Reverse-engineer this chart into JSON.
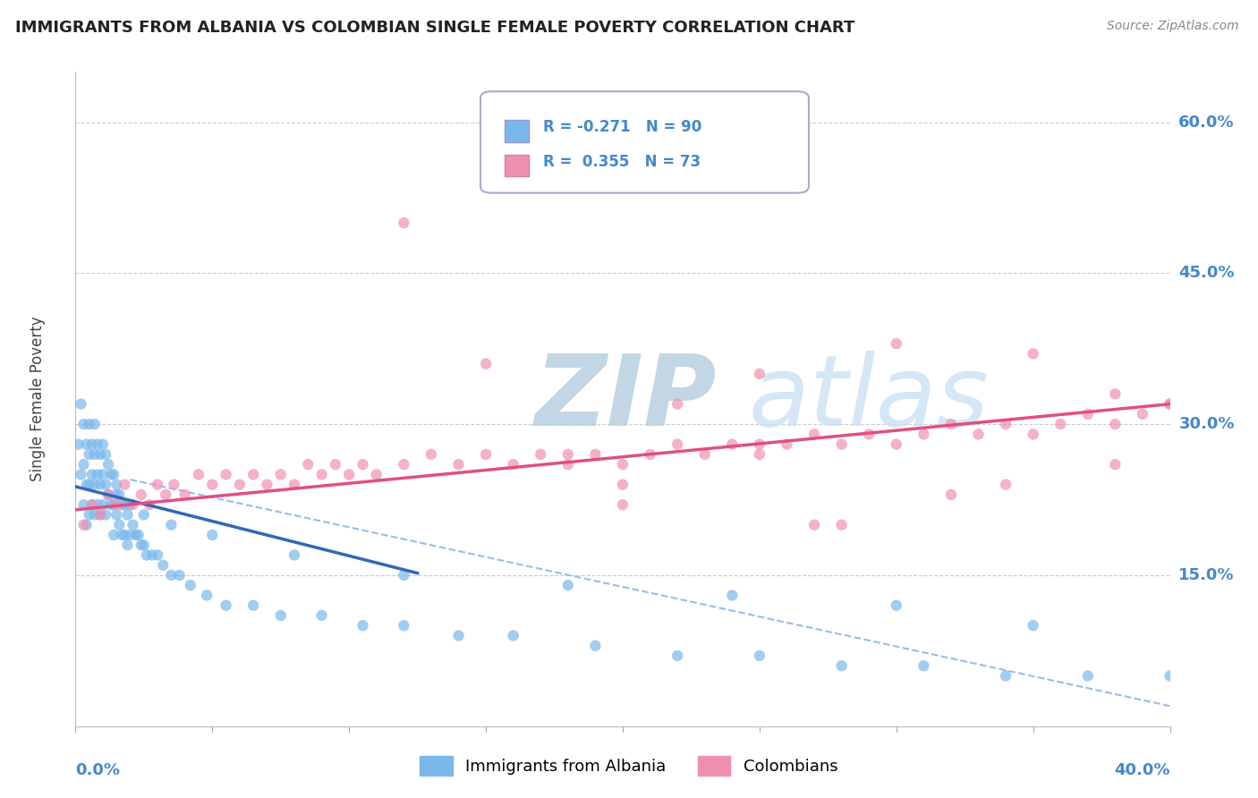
{
  "title": "IMMIGRANTS FROM ALBANIA VS COLOMBIAN SINGLE FEMALE POVERTY CORRELATION CHART",
  "source_text": "Source: ZipAtlas.com",
  "xlim": [
    0.0,
    0.4
  ],
  "ylim": [
    0.0,
    0.65
  ],
  "watermark_zip": "ZIP",
  "watermark_atlas": "atlas",
  "legend_line1": "R = -0.271   N = 90",
  "legend_line2": "R =  0.355   N = 73",
  "albania_color": "#7ab8ec",
  "colombia_color": "#f090b0",
  "albania_trend_color": "#3366bb",
  "colombia_trend_color": "#e05080",
  "dashed_line_color": "#99bbee",
  "background_color": "#ffffff",
  "grid_color": "#cccccc",
  "title_color": "#222222",
  "axis_label_color": "#4488cc",
  "watermark_color_zip": "#b8d0e8",
  "watermark_color_atlas": "#c8ddf0",
  "ylabel_right": [
    "15.0%",
    "30.0%",
    "45.0%",
    "60.0%"
  ],
  "ylabel_right_vals": [
    0.15,
    0.3,
    0.45,
    0.6
  ],
  "albania_scatter_x": [
    0.001,
    0.002,
    0.002,
    0.003,
    0.003,
    0.003,
    0.004,
    0.004,
    0.004,
    0.005,
    0.005,
    0.005,
    0.005,
    0.006,
    0.006,
    0.006,
    0.007,
    0.007,
    0.007,
    0.007,
    0.008,
    0.008,
    0.008,
    0.009,
    0.009,
    0.009,
    0.01,
    0.01,
    0.01,
    0.011,
    0.011,
    0.011,
    0.012,
    0.012,
    0.013,
    0.013,
    0.014,
    0.014,
    0.014,
    0.015,
    0.015,
    0.016,
    0.016,
    0.017,
    0.017,
    0.018,
    0.018,
    0.019,
    0.019,
    0.02,
    0.02,
    0.021,
    0.022,
    0.023,
    0.024,
    0.025,
    0.026,
    0.028,
    0.03,
    0.032,
    0.035,
    0.038,
    0.042,
    0.048,
    0.055,
    0.065,
    0.075,
    0.09,
    0.105,
    0.12,
    0.14,
    0.16,
    0.19,
    0.22,
    0.25,
    0.28,
    0.31,
    0.34,
    0.37,
    0.4,
    0.35,
    0.3,
    0.24,
    0.18,
    0.12,
    0.08,
    0.05,
    0.035,
    0.025,
    0.015
  ],
  "albania_scatter_y": [
    0.28,
    0.32,
    0.25,
    0.3,
    0.26,
    0.22,
    0.28,
    0.24,
    0.2,
    0.3,
    0.27,
    0.24,
    0.21,
    0.28,
    0.25,
    0.22,
    0.3,
    0.27,
    0.24,
    0.21,
    0.28,
    0.25,
    0.22,
    0.27,
    0.24,
    0.21,
    0.28,
    0.25,
    0.22,
    0.27,
    0.24,
    0.21,
    0.26,
    0.23,
    0.25,
    0.22,
    0.25,
    0.22,
    0.19,
    0.24,
    0.21,
    0.23,
    0.2,
    0.22,
    0.19,
    0.22,
    0.19,
    0.21,
    0.18,
    0.22,
    0.19,
    0.2,
    0.19,
    0.19,
    0.18,
    0.18,
    0.17,
    0.17,
    0.17,
    0.16,
    0.15,
    0.15,
    0.14,
    0.13,
    0.12,
    0.12,
    0.11,
    0.11,
    0.1,
    0.1,
    0.09,
    0.09,
    0.08,
    0.07,
    0.07,
    0.06,
    0.06,
    0.05,
    0.05,
    0.05,
    0.1,
    0.12,
    0.13,
    0.14,
    0.15,
    0.17,
    0.19,
    0.2,
    0.21,
    0.23
  ],
  "colombia_scatter_x": [
    0.003,
    0.006,
    0.009,
    0.012,
    0.015,
    0.018,
    0.021,
    0.024,
    0.027,
    0.03,
    0.033,
    0.036,
    0.04,
    0.045,
    0.05,
    0.055,
    0.06,
    0.065,
    0.07,
    0.075,
    0.08,
    0.085,
    0.09,
    0.095,
    0.1,
    0.105,
    0.11,
    0.12,
    0.13,
    0.14,
    0.15,
    0.16,
    0.17,
    0.18,
    0.19,
    0.2,
    0.21,
    0.22,
    0.23,
    0.24,
    0.25,
    0.26,
    0.27,
    0.28,
    0.29,
    0.3,
    0.31,
    0.32,
    0.33,
    0.34,
    0.35,
    0.36,
    0.37,
    0.38,
    0.39,
    0.4,
    0.15,
    0.22,
    0.3,
    0.35,
    0.38,
    0.2,
    0.25,
    0.28,
    0.18,
    0.12,
    0.25,
    0.32,
    0.38,
    0.2,
    0.27,
    0.34,
    0.4
  ],
  "colombia_scatter_y": [
    0.2,
    0.22,
    0.21,
    0.23,
    0.22,
    0.24,
    0.22,
    0.23,
    0.22,
    0.24,
    0.23,
    0.24,
    0.23,
    0.25,
    0.24,
    0.25,
    0.24,
    0.25,
    0.24,
    0.25,
    0.24,
    0.26,
    0.25,
    0.26,
    0.25,
    0.26,
    0.25,
    0.26,
    0.27,
    0.26,
    0.27,
    0.26,
    0.27,
    0.26,
    0.27,
    0.26,
    0.27,
    0.28,
    0.27,
    0.28,
    0.27,
    0.28,
    0.29,
    0.28,
    0.29,
    0.28,
    0.29,
    0.3,
    0.29,
    0.3,
    0.29,
    0.3,
    0.31,
    0.3,
    0.31,
    0.32,
    0.36,
    0.32,
    0.38,
    0.37,
    0.26,
    0.22,
    0.28,
    0.2,
    0.27,
    0.5,
    0.35,
    0.23,
    0.33,
    0.24,
    0.2,
    0.24,
    0.32
  ]
}
